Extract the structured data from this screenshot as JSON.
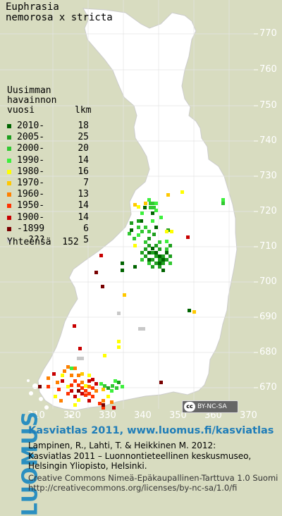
{
  "map": {
    "title_line1": "Euphrasia",
    "title_line2": "nemorosa x stricta",
    "legend_head1": "Uusimman",
    "legend_head2": "havainnon",
    "legend_head3": "vuosi",
    "legend_head4": "lkm",
    "legend": [
      {
        "label": "2010-",
        "count": "18",
        "color": "#006400"
      },
      {
        "label": "2005-",
        "count": "25",
        "color": "#1e9e1e"
      },
      {
        "label": "2000-",
        "count": "20",
        "color": "#32c832"
      },
      {
        "label": "1990-",
        "count": "14",
        "color": "#3cf03c"
      },
      {
        "label": "1980-",
        "count": "16",
        "color": "#ffff00"
      },
      {
        "label": "1970-",
        "count": "7",
        "color": "#ffc800"
      },
      {
        "label": "1960-",
        "count": "13",
        "color": "#ff8000"
      },
      {
        "label": "1950-",
        "count": "14",
        "color": "#ff3200"
      },
      {
        "label": "1900-",
        "count": "14",
        "color": "#c80000"
      },
      {
        "label": "-1899",
        "count": "6",
        "color": "#780000"
      },
      {
        "label": "???",
        "count": "5",
        "color": "#c8c8c8"
      }
    ],
    "total_label": "Yhteensä",
    "total_count": "152",
    "y_ticks": [
      "770",
      "760",
      "750",
      "740",
      "730",
      "720",
      "710",
      "700",
      "690",
      "680",
      "670"
    ],
    "x_ticks": [
      "310",
      "320",
      "330",
      "340",
      "350",
      "360",
      "370"
    ],
    "license_badge": "BY-NC-SA"
  },
  "footer": {
    "brand": "LUOMUS",
    "title": "Kasviatlas 2011, www.luomus.fi/kasviatlas",
    "citation1": "Lampinen, R., Lahti, T. & Heikkinen M. 2012:",
    "citation2": "Kasviatlas 2011 – Luonnontieteellinen keskusmuseo,",
    "citation3": "Helsingin Yliopisto, Helsinki.",
    "license1": "Creative Commons Nimeä-Epäkaupallinen-Tarttuva 1.0 Suomi",
    "license2": "http://creativecommons.org/licenses/by-nc-sa/1.0/fi"
  }
}
